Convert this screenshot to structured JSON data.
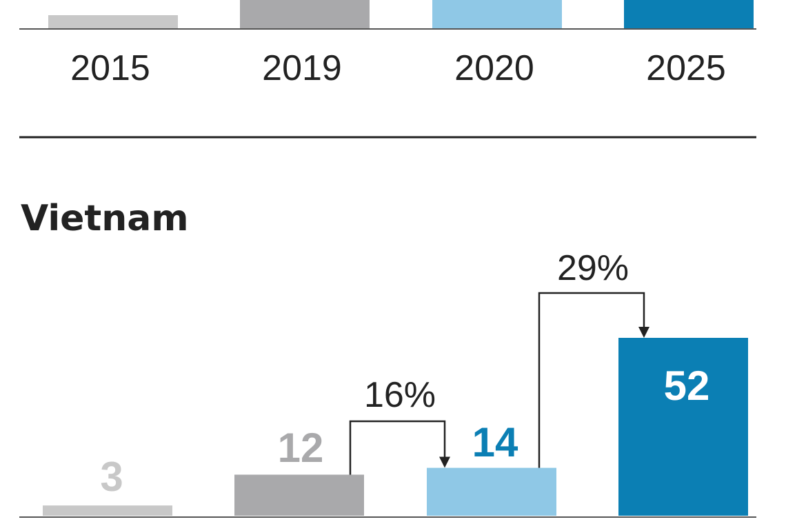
{
  "chart_data": [
    {
      "type": "bar",
      "title": "",
      "categories": [
        "2015",
        "2019",
        "2020",
        "2025"
      ],
      "values": [
        null,
        null,
        null,
        null
      ],
      "colors": [
        "#c8c8c8",
        "#a9a9ab",
        "#8fc8e6",
        "#0b7fb4"
      ]
    },
    {
      "type": "bar",
      "title": "Vietnam",
      "categories": [
        "2015",
        "2019",
        "2020",
        "2025"
      ],
      "values": [
        3,
        12,
        14,
        52
      ],
      "value_labels": [
        "3",
        "12",
        "14",
        "52"
      ],
      "colors": [
        "#c8c8c8",
        "#a9a9ab",
        "#8fc8e6",
        "#0b7fb4"
      ],
      "label_colors": [
        "#c8c8c8",
        "#a9a9ab",
        "#0b7fb4",
        "#ffffff"
      ],
      "annotations": [
        {
          "text": "16%",
          "from": "2019",
          "to": "2020"
        },
        {
          "text": "29%",
          "from": "2020",
          "to": "2025"
        }
      ]
    }
  ]
}
